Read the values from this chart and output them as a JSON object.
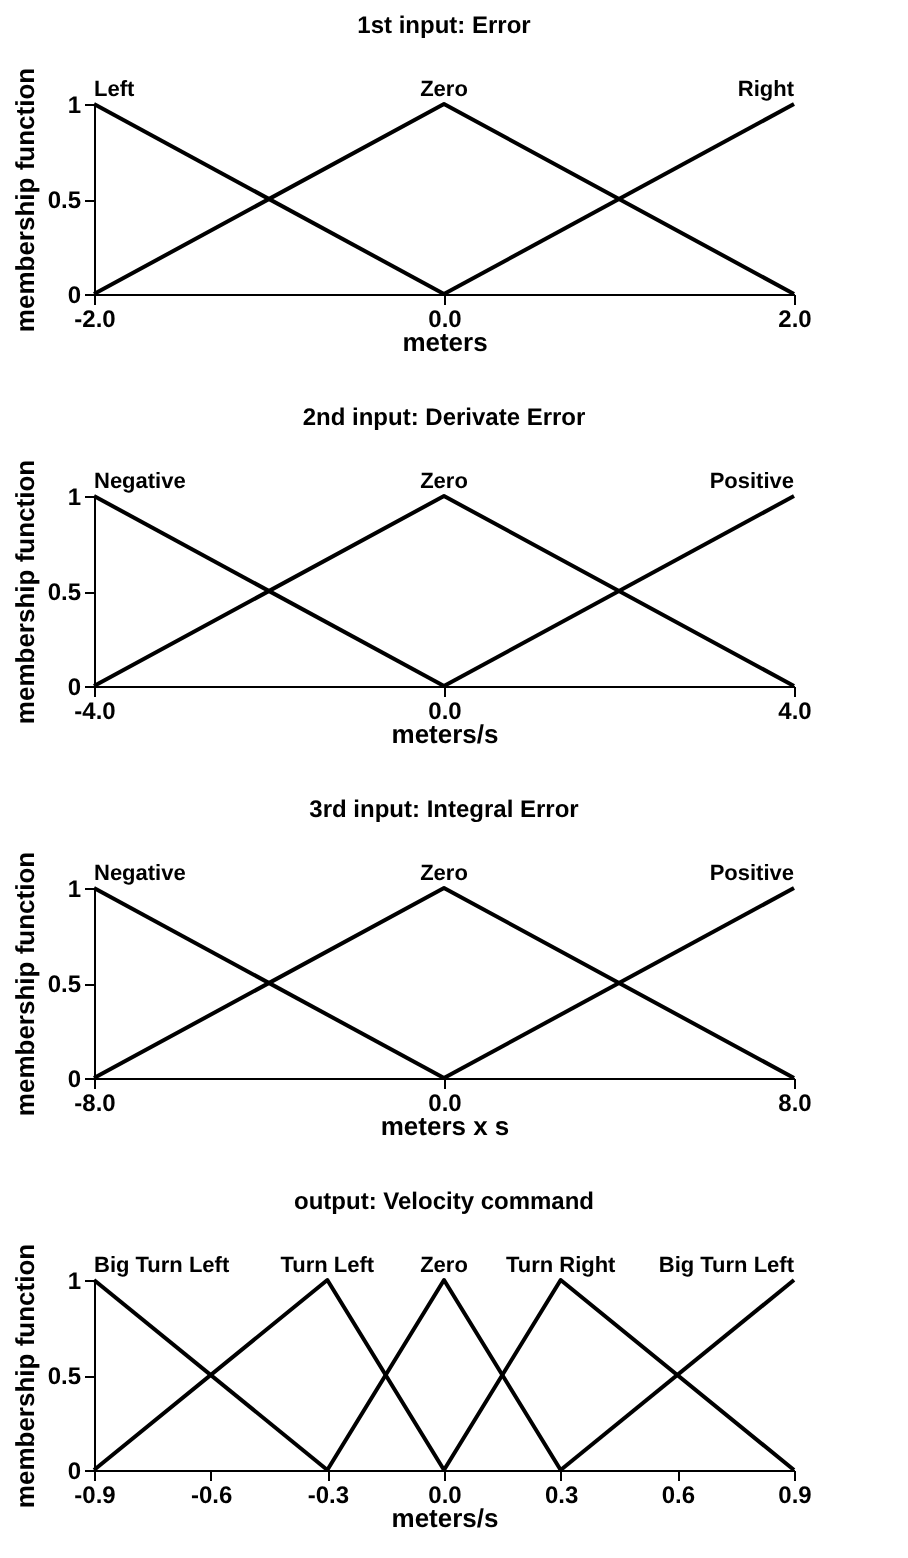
{
  "chart_data": [
    {
      "type": "line",
      "title": "1st input: Error",
      "xlabel": "meters",
      "ylabel": "membership function",
      "xlim": [
        -2,
        2
      ],
      "xticks": [
        {
          "value": -2,
          "label": "-2.0"
        },
        {
          "value": 0,
          "label": "0.0"
        },
        {
          "value": 2,
          "label": "2.0"
        }
      ],
      "ylim": [
        0,
        1
      ],
      "yticks": [
        0,
        0.5,
        1
      ],
      "grid": false,
      "legend": false,
      "marker": "none",
      "line_style": "solid",
      "series": [
        {
          "name": "Left",
          "color": "#000000",
          "x": [
            -2,
            0
          ],
          "values": [
            1,
            0
          ]
        },
        {
          "name": "Zero",
          "color": "#000000",
          "x": [
            -2,
            0,
            2
          ],
          "values": [
            0,
            1,
            0
          ]
        },
        {
          "name": "Right",
          "color": "#000000",
          "x": [
            0,
            2
          ],
          "values": [
            0,
            1
          ]
        }
      ]
    },
    {
      "type": "line",
      "title": "2nd input: Derivate Error",
      "xlabel": "meters/s",
      "ylabel": "membership function",
      "xlim": [
        -4,
        4
      ],
      "xticks": [
        {
          "value": -4,
          "label": "-4.0"
        },
        {
          "value": 0,
          "label": "0.0"
        },
        {
          "value": 4,
          "label": "4.0"
        }
      ],
      "ylim": [
        0,
        1
      ],
      "yticks": [
        0,
        0.5,
        1
      ],
      "grid": false,
      "legend": false,
      "marker": "none",
      "line_style": "solid",
      "series": [
        {
          "name": "Negative",
          "color": "#000000",
          "x": [
            -4,
            0
          ],
          "values": [
            1,
            0
          ]
        },
        {
          "name": "Zero",
          "color": "#000000",
          "x": [
            -4,
            0,
            4
          ],
          "values": [
            0,
            1,
            0
          ]
        },
        {
          "name": "Positive",
          "color": "#000000",
          "x": [
            0,
            4
          ],
          "values": [
            0,
            1
          ]
        }
      ]
    },
    {
      "type": "line",
      "title": "3rd input: Integral Error",
      "xlabel": "meters x s",
      "ylabel": "membership function",
      "xlim": [
        -8,
        8
      ],
      "xticks": [
        {
          "value": -8,
          "label": "-8.0"
        },
        {
          "value": 0,
          "label": "0.0"
        },
        {
          "value": 8,
          "label": "8.0"
        }
      ],
      "ylim": [
        0,
        1
      ],
      "yticks": [
        0,
        0.5,
        1
      ],
      "grid": false,
      "legend": false,
      "marker": "none",
      "line_style": "solid",
      "series": [
        {
          "name": "Negative",
          "color": "#000000",
          "x": [
            -8,
            0
          ],
          "values": [
            1,
            0
          ]
        },
        {
          "name": "Zero",
          "color": "#000000",
          "x": [
            -8,
            0,
            8
          ],
          "values": [
            0,
            1,
            0
          ]
        },
        {
          "name": "Positive",
          "color": "#000000",
          "x": [
            0,
            8
          ],
          "values": [
            0,
            1
          ]
        }
      ]
    },
    {
      "type": "line",
      "title": "output: Velocity command",
      "xlabel": "meters/s",
      "ylabel": "membership function",
      "xlim": [
        -0.9,
        0.9
      ],
      "xticks": [
        -0.9,
        -0.6,
        -0.3,
        {
          "value": 0,
          "label": "0.0"
        },
        0.3,
        0.6,
        0.9
      ],
      "ylim": [
        0,
        1
      ],
      "yticks": [
        0,
        0.5,
        1
      ],
      "grid": false,
      "legend": false,
      "marker": "none",
      "line_style": "solid",
      "series": [
        {
          "name": "Big Turn Left",
          "color": "#000000",
          "x": [
            -0.9,
            -0.3
          ],
          "values": [
            1,
            0
          ]
        },
        {
          "name": "Turn Left",
          "color": "#000000",
          "x": [
            -0.9,
            -0.3,
            0
          ],
          "values": [
            0,
            1,
            0
          ]
        },
        {
          "name": "Zero",
          "color": "#000000",
          "x": [
            -0.3,
            0,
            0.3
          ],
          "values": [
            0,
            1,
            0
          ]
        },
        {
          "name": "Turn Right",
          "color": "#000000",
          "x": [
            0,
            0.3,
            0.9
          ],
          "values": [
            0,
            1,
            0
          ]
        },
        {
          "name": "Big Turn Left",
          "color": "#000000",
          "x": [
            0.3,
            0.9
          ],
          "values": [
            0,
            1
          ]
        }
      ]
    }
  ]
}
